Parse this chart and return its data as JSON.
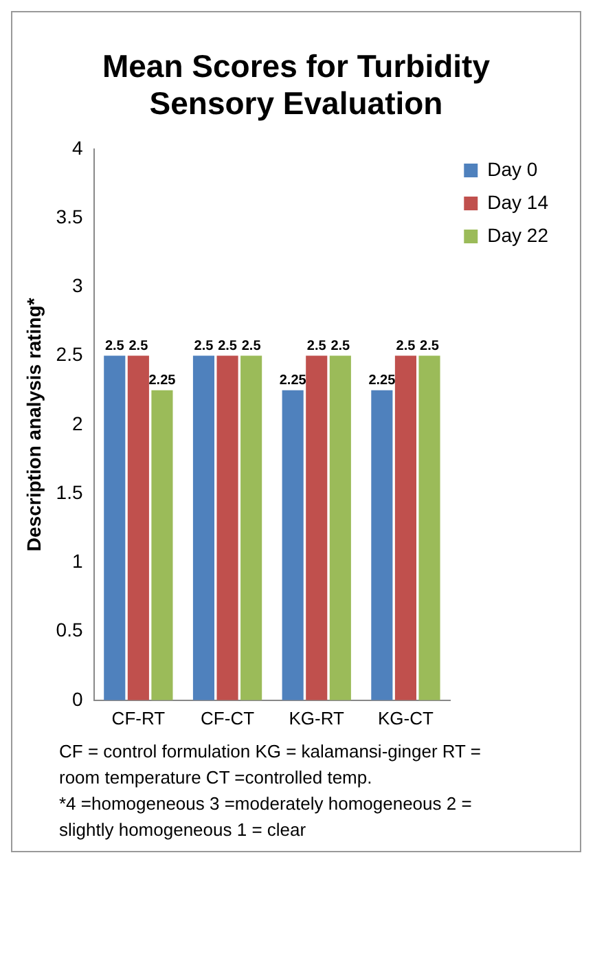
{
  "chart_data": {
    "type": "bar",
    "title": "Mean Scores for Turbidity Sensory Evaluation",
    "ylabel": "Description analysis rating*",
    "categories": [
      "CF-RT",
      "CF-CT",
      "KG-RT",
      "KG-CT"
    ],
    "series": [
      {
        "name": "Day 0",
        "color": "#4f81bd",
        "values": [
          2.5,
          2.5,
          2.25,
          2.25
        ]
      },
      {
        "name": "Day 14",
        "color": "#c0504d",
        "values": [
          2.5,
          2.5,
          2.5,
          2.5
        ]
      },
      {
        "name": "Day 22",
        "color": "#9bbb59",
        "values": [
          2.25,
          2.5,
          2.5,
          2.5
        ]
      }
    ],
    "ylim": [
      0,
      4
    ],
    "yticks": [
      0,
      0.5,
      1,
      1.5,
      2,
      2.5,
      3,
      3.5,
      4
    ],
    "grid": false,
    "legend": "top right",
    "data_labels": true,
    "annotations": [
      "CF = control formulation  KG = kalamansi-ginger  RT = room temperature  CT =controlled temp.",
      "*4 =homogeneous  3 =moderately homogeneous  2 = slightly homogeneous  1 = clear"
    ]
  }
}
